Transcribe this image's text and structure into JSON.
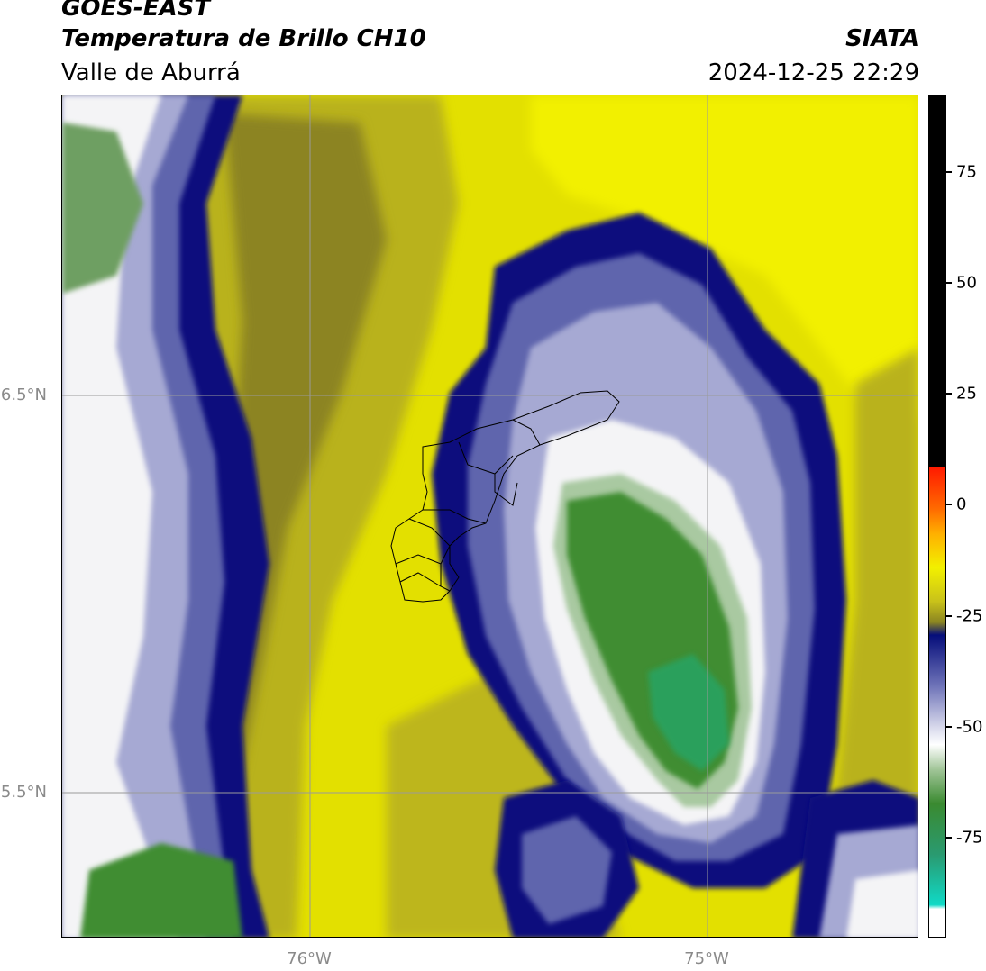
{
  "header": {
    "satellite": "GOES-EAST",
    "product": "Temperatura de Brillo CH10",
    "region": "Valle de Aburrá",
    "brand": "SIATA",
    "datetime": "2024-12-25 22:29"
  },
  "axes": {
    "latitude_labels": [
      "6.5°N",
      "5.5°N"
    ],
    "longitude_labels": [
      "76°W",
      "75°W"
    ]
  },
  "colorbar": {
    "tick_labels": [
      "75",
      "50",
      "25",
      "0",
      "-25",
      "-50",
      "-75"
    ],
    "colors": {
      "black": "#000000",
      "red": "#ff1a00",
      "orange": "#ff8c00",
      "yellow": "#f2f000",
      "olive": "#a9a21a",
      "navy": "#050d7a",
      "lavender": "#8f93c6",
      "white": "#ffffff",
      "green": "#3a8a30",
      "teal": "#10d9c6"
    }
  },
  "colors": {
    "background_yellow": "#e3e000",
    "bright_yellow": "#f2f000",
    "olive": "#b9b21a",
    "dark_olive": "#8c8421",
    "navy": "#070f7d",
    "purple": "#5f65ad",
    "lavender": "#a6a9d3",
    "white": "#f4f4f6",
    "light_green": "#a9c9a1",
    "green": "#3f8d33",
    "teal_green": "#2aa05c",
    "grid": "#9a9a9a"
  }
}
